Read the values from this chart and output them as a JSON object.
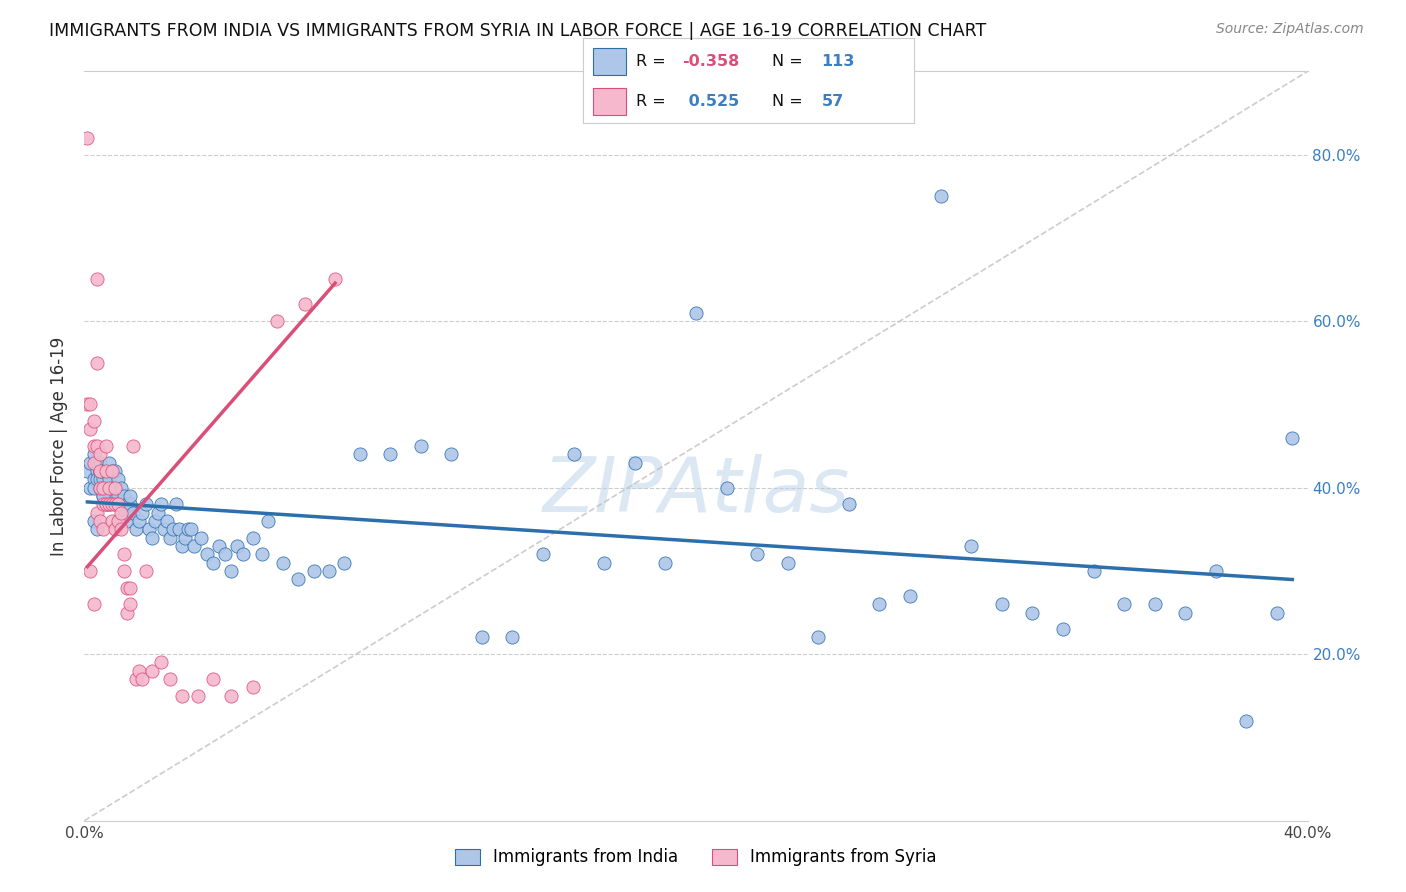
{
  "title": "IMMIGRANTS FROM INDIA VS IMMIGRANTS FROM SYRIA IN LABOR FORCE | AGE 16-19 CORRELATION CHART",
  "source": "Source: ZipAtlas.com",
  "ylabel": "In Labor Force | Age 16-19",
  "legend_india": "Immigrants from India",
  "legend_syria": "Immigrants from Syria",
  "R_india": -0.358,
  "N_india": 113,
  "R_syria": 0.525,
  "N_syria": 57,
  "color_india": "#aec6e8",
  "color_india_line": "#2c6fad",
  "color_syria": "#f5b8cc",
  "color_syria_line": "#d94f7a",
  "color_diag": "#c0c0c0",
  "xlim": [
    0.0,
    0.4
  ],
  "ylim": [
    0.0,
    0.9
  ],
  "ytick_vals": [
    0.2,
    0.4,
    0.6,
    0.8
  ],
  "ytick_labels": [
    "20.0%",
    "40.0%",
    "60.0%",
    "80.0%"
  ],
  "xtick_vals": [
    0.0,
    0.05,
    0.1,
    0.15,
    0.2,
    0.25,
    0.3,
    0.35,
    0.4
  ],
  "xtick_labels": [
    "0.0%",
    "",
    "",
    "",
    "",
    "",
    "",
    "",
    "40.0%"
  ],
  "watermark": "ZIPAtlas",
  "india_x": [
    0.001,
    0.002,
    0.002,
    0.003,
    0.003,
    0.003,
    0.004,
    0.004,
    0.004,
    0.005,
    0.005,
    0.005,
    0.005,
    0.006,
    0.006,
    0.006,
    0.006,
    0.007,
    0.007,
    0.007,
    0.007,
    0.008,
    0.008,
    0.008,
    0.009,
    0.009,
    0.009,
    0.01,
    0.01,
    0.01,
    0.011,
    0.011,
    0.012,
    0.012,
    0.013,
    0.013,
    0.014,
    0.014,
    0.015,
    0.015,
    0.016,
    0.017,
    0.018,
    0.019,
    0.02,
    0.021,
    0.022,
    0.023,
    0.024,
    0.025,
    0.026,
    0.027,
    0.028,
    0.029,
    0.03,
    0.031,
    0.032,
    0.033,
    0.034,
    0.035,
    0.036,
    0.038,
    0.04,
    0.042,
    0.044,
    0.046,
    0.048,
    0.05,
    0.052,
    0.055,
    0.058,
    0.06,
    0.065,
    0.07,
    0.075,
    0.08,
    0.085,
    0.09,
    0.1,
    0.11,
    0.12,
    0.13,
    0.14,
    0.15,
    0.16,
    0.17,
    0.18,
    0.19,
    0.2,
    0.21,
    0.22,
    0.23,
    0.24,
    0.25,
    0.26,
    0.27,
    0.28,
    0.29,
    0.3,
    0.31,
    0.32,
    0.33,
    0.34,
    0.35,
    0.36,
    0.37,
    0.38,
    0.39,
    0.395,
    0.003,
    0.004,
    0.005,
    0.006
  ],
  "india_y": [
    0.42,
    0.4,
    0.43,
    0.41,
    0.44,
    0.4,
    0.42,
    0.43,
    0.41,
    0.4,
    0.42,
    0.43,
    0.41,
    0.39,
    0.4,
    0.41,
    0.42,
    0.38,
    0.4,
    0.42,
    0.4,
    0.41,
    0.43,
    0.38,
    0.39,
    0.4,
    0.42,
    0.42,
    0.38,
    0.4,
    0.39,
    0.41,
    0.38,
    0.4,
    0.37,
    0.39,
    0.36,
    0.38,
    0.38,
    0.39,
    0.37,
    0.35,
    0.36,
    0.37,
    0.38,
    0.35,
    0.34,
    0.36,
    0.37,
    0.38,
    0.35,
    0.36,
    0.34,
    0.35,
    0.38,
    0.35,
    0.33,
    0.34,
    0.35,
    0.35,
    0.33,
    0.34,
    0.32,
    0.31,
    0.33,
    0.32,
    0.3,
    0.33,
    0.32,
    0.34,
    0.32,
    0.36,
    0.31,
    0.29,
    0.3,
    0.3,
    0.31,
    0.44,
    0.44,
    0.45,
    0.44,
    0.22,
    0.22,
    0.32,
    0.44,
    0.31,
    0.43,
    0.31,
    0.61,
    0.4,
    0.32,
    0.31,
    0.22,
    0.38,
    0.26,
    0.27,
    0.75,
    0.33,
    0.26,
    0.25,
    0.23,
    0.3,
    0.26,
    0.26,
    0.25,
    0.3,
    0.12,
    0.25,
    0.46,
    0.36,
    0.35,
    0.42,
    0.39
  ],
  "syria_x": [
    0.001,
    0.001,
    0.002,
    0.002,
    0.002,
    0.003,
    0.003,
    0.003,
    0.003,
    0.004,
    0.004,
    0.004,
    0.004,
    0.005,
    0.005,
    0.005,
    0.005,
    0.006,
    0.006,
    0.006,
    0.007,
    0.007,
    0.007,
    0.008,
    0.008,
    0.009,
    0.009,
    0.009,
    0.01,
    0.01,
    0.01,
    0.011,
    0.011,
    0.012,
    0.012,
    0.013,
    0.013,
    0.014,
    0.014,
    0.015,
    0.015,
    0.016,
    0.017,
    0.018,
    0.019,
    0.02,
    0.022,
    0.025,
    0.028,
    0.032,
    0.037,
    0.042,
    0.048,
    0.055,
    0.063,
    0.072,
    0.082
  ],
  "syria_y": [
    0.82,
    0.5,
    0.47,
    0.5,
    0.3,
    0.45,
    0.43,
    0.48,
    0.26,
    0.55,
    0.65,
    0.45,
    0.37,
    0.42,
    0.4,
    0.44,
    0.36,
    0.4,
    0.38,
    0.35,
    0.45,
    0.42,
    0.38,
    0.4,
    0.38,
    0.42,
    0.38,
    0.36,
    0.4,
    0.38,
    0.35,
    0.38,
    0.36,
    0.35,
    0.37,
    0.32,
    0.3,
    0.28,
    0.25,
    0.28,
    0.26,
    0.45,
    0.17,
    0.18,
    0.17,
    0.3,
    0.18,
    0.19,
    0.17,
    0.15,
    0.15,
    0.17,
    0.15,
    0.16,
    0.6,
    0.62,
    0.65
  ]
}
